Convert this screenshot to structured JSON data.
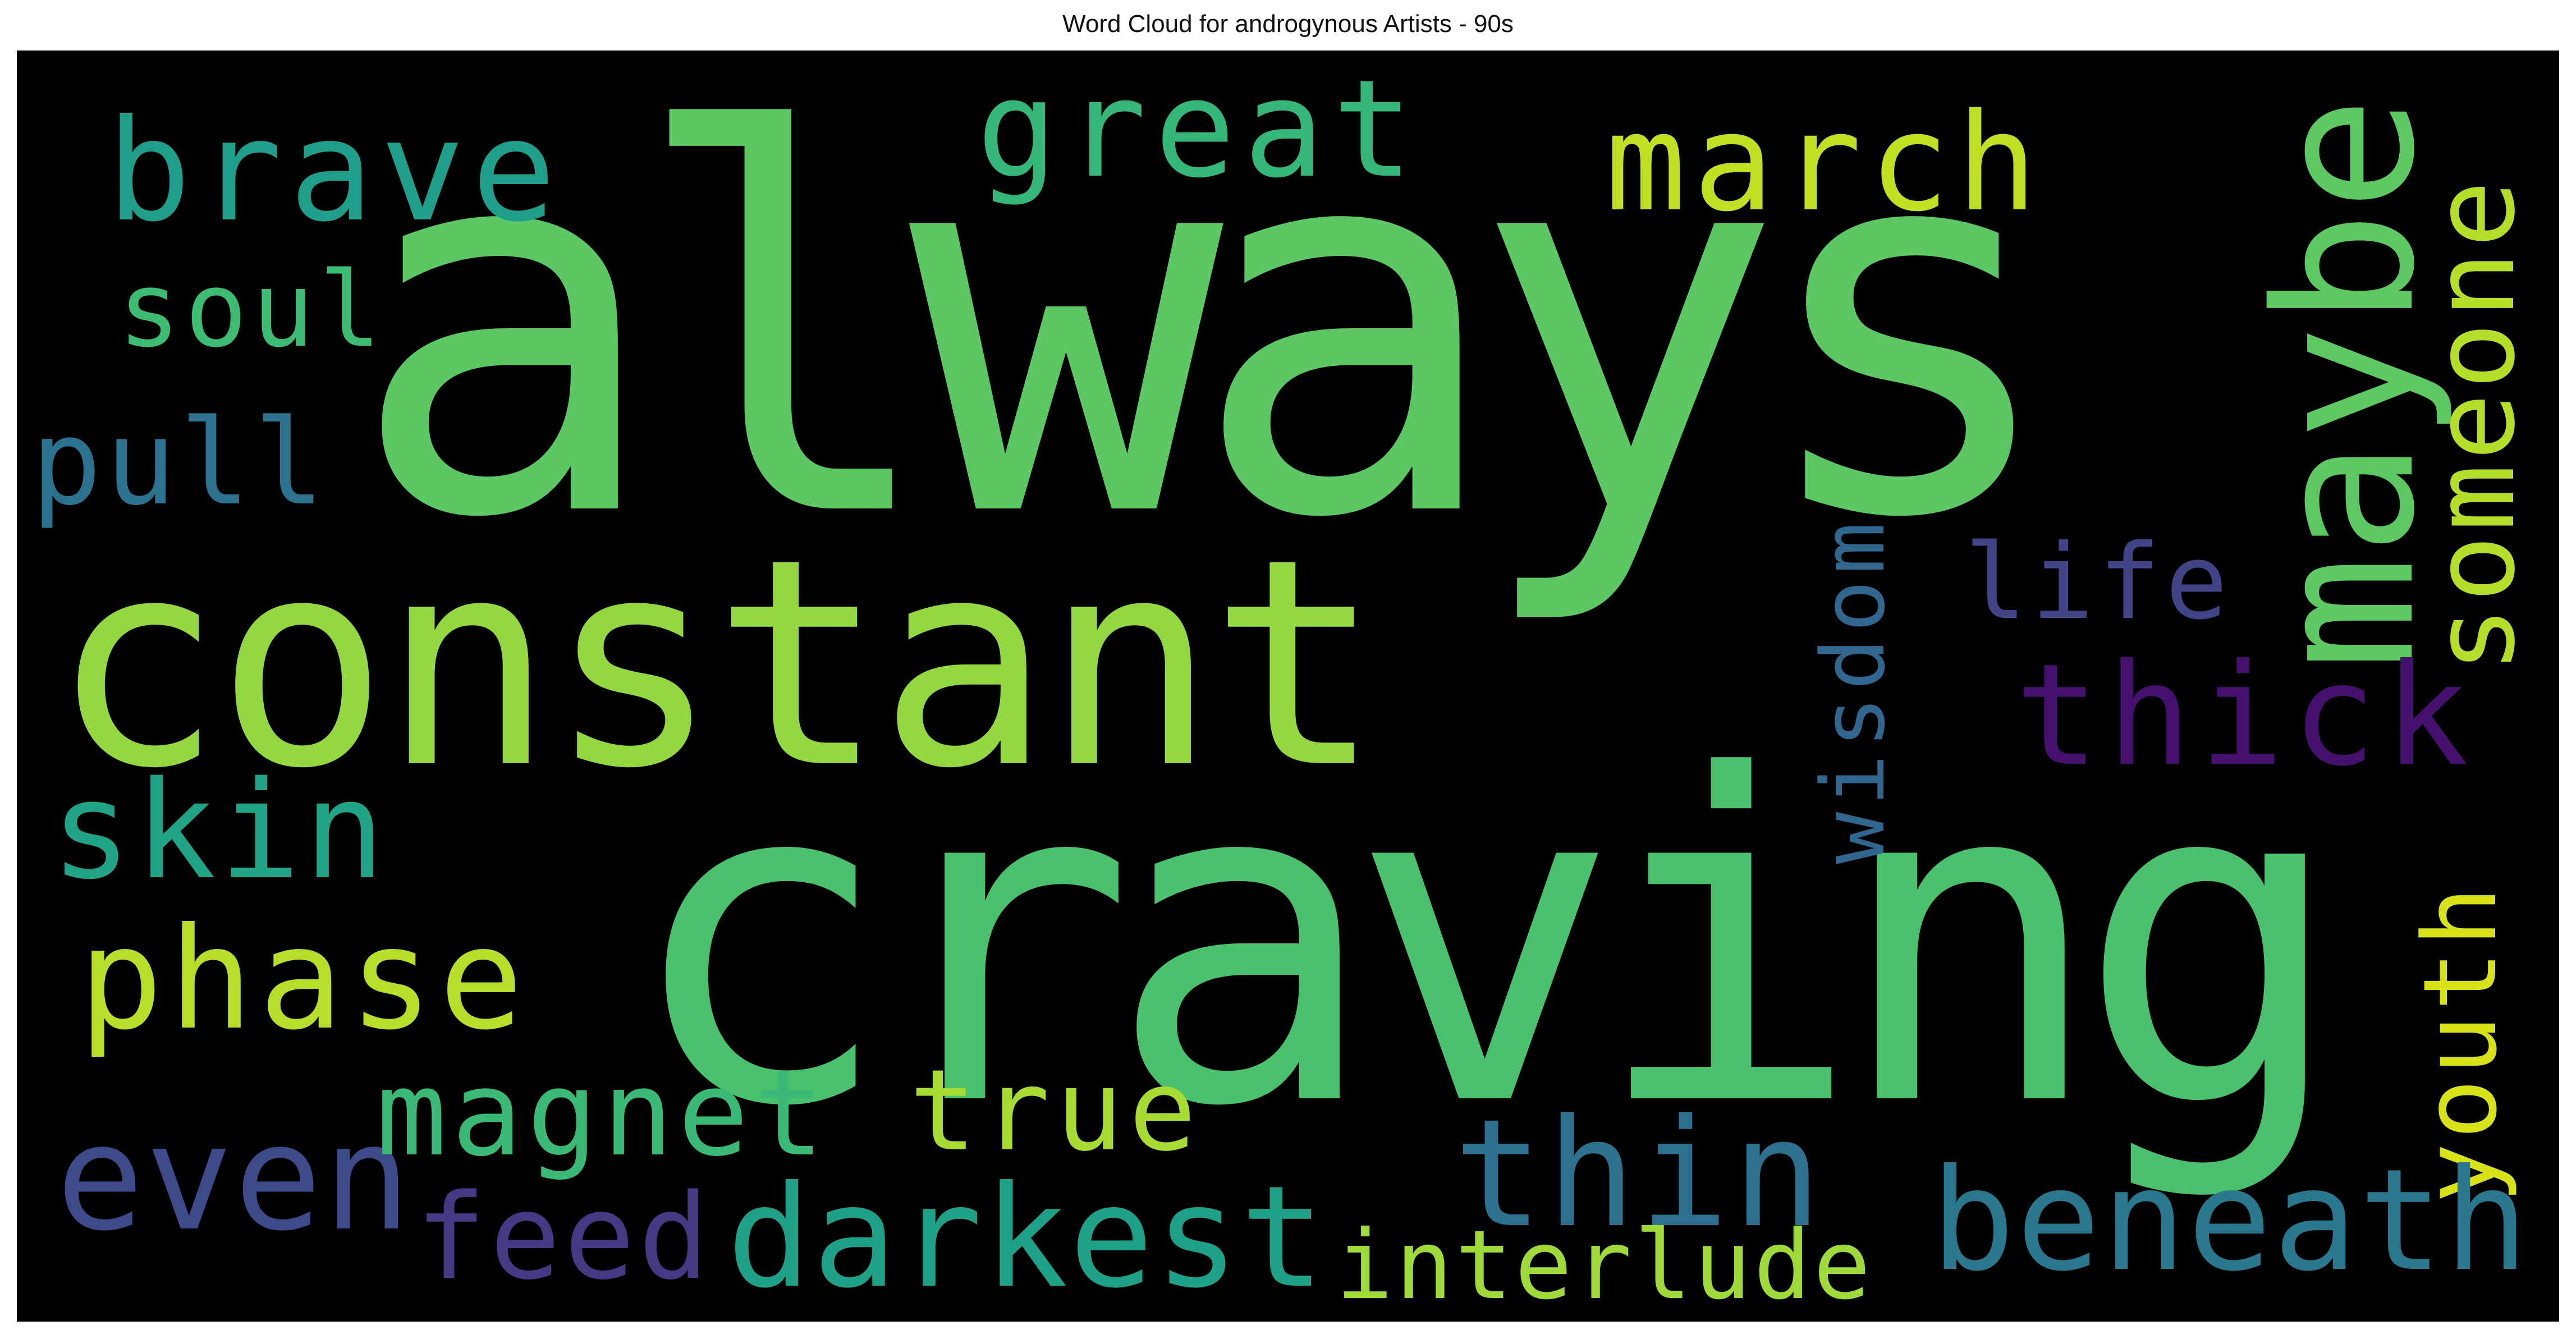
{
  "title": "Word Cloud for androgynous Artists - 90s",
  "words": [
    {
      "text": "always",
      "color": "#5cc863",
      "orientation": "horizontal"
    },
    {
      "text": "craving",
      "color": "#4ac16d",
      "orientation": "horizontal"
    },
    {
      "text": "constant",
      "color": "#93d741",
      "orientation": "horizontal"
    },
    {
      "text": "maybe",
      "color": "#5ec962",
      "orientation": "vertical"
    },
    {
      "text": "someone",
      "color": "#b5de2b",
      "orientation": "vertical"
    },
    {
      "text": "brave",
      "color": "#1f9e89",
      "orientation": "horizontal"
    },
    {
      "text": "great",
      "color": "#35b779",
      "orientation": "horizontal"
    },
    {
      "text": "march",
      "color": "#c2df23",
      "orientation": "horizontal"
    },
    {
      "text": "soul",
      "color": "#3dbc74",
      "orientation": "horizontal"
    },
    {
      "text": "pull",
      "color": "#2c728e",
      "orientation": "horizontal"
    },
    {
      "text": "wisdom",
      "color": "#31668e",
      "orientation": "vertical"
    },
    {
      "text": "life",
      "color": "#414487",
      "orientation": "horizontal"
    },
    {
      "text": "thick",
      "color": "#46106f",
      "orientation": "horizontal"
    },
    {
      "text": "skin",
      "color": "#20a386",
      "orientation": "horizontal"
    },
    {
      "text": "phase",
      "color": "#b8de29",
      "orientation": "horizontal"
    },
    {
      "text": "youth",
      "color": "#d8e219",
      "orientation": "vertical"
    },
    {
      "text": "even",
      "color": "#3e4a89",
      "orientation": "horizontal"
    },
    {
      "text": "magnet",
      "color": "#3aba76",
      "orientation": "horizontal"
    },
    {
      "text": "true",
      "color": "#a8db34",
      "orientation": "horizontal"
    },
    {
      "text": "thin",
      "color": "#2d718e",
      "orientation": "horizontal"
    },
    {
      "text": "feed",
      "color": "#443983",
      "orientation": "horizontal"
    },
    {
      "text": "darkest",
      "color": "#1fa188",
      "orientation": "horizontal"
    },
    {
      "text": "interlude",
      "color": "#9fda3a",
      "orientation": "horizontal"
    },
    {
      "text": "beneath",
      "color": "#2a788e",
      "orientation": "horizontal"
    }
  ]
}
